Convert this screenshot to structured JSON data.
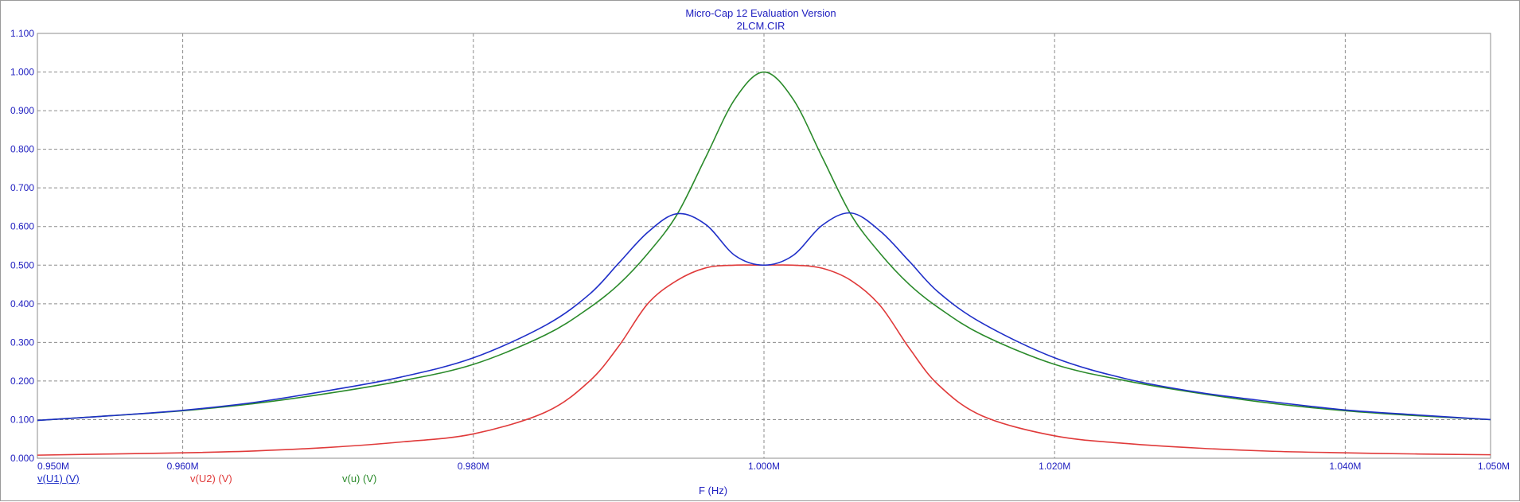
{
  "header": {
    "title": "Micro-Cap 12 Evaluation Version",
    "subtitle": "2LCM.CIR"
  },
  "colors": {
    "grid": "#8c8c8c",
    "axis_text": "#2020c0",
    "frame": "#9a9a9a"
  },
  "chart_data": {
    "type": "line",
    "title": "Micro-Cap 12 Evaluation Version",
    "subtitle": "2LCM.CIR",
    "xlabel": "F (Hz)",
    "ylabel": "",
    "xlim": [
      0.95,
      1.05
    ],
    "ylim": [
      0,
      1.1
    ],
    "x_unit": "MHz",
    "xticks": [
      0.95,
      0.96,
      0.98,
      1.0,
      1.02,
      1.04,
      1.05
    ],
    "xtick_labels": [
      "0.950M",
      "0.960M",
      "0.980M",
      "1.000M",
      "1.020M",
      "1.040M",
      "1.050M"
    ],
    "yticks": [
      0,
      0.1,
      0.2,
      0.3,
      0.4,
      0.5,
      0.6,
      0.7,
      0.8,
      0.9,
      1.0,
      1.1
    ],
    "ytick_labels": [
      "0.000",
      "0.100",
      "0.200",
      "0.300",
      "0.400",
      "0.500",
      "0.600",
      "0.700",
      "0.800",
      "0.900",
      "1.000",
      "1.100"
    ],
    "grid": true,
    "legend_position": "bottom-left",
    "series": [
      {
        "name": "v(U1) (V)",
        "color": "#1f2fc8",
        "x": [
          0.95,
          0.955,
          0.96,
          0.965,
          0.97,
          0.975,
          0.98,
          0.985,
          0.988,
          0.99,
          0.992,
          0.994,
          0.996,
          0.998,
          1.0,
          1.002,
          1.004,
          1.006,
          1.008,
          1.01,
          1.012,
          1.015,
          1.02,
          1.025,
          1.03,
          1.035,
          1.04,
          1.045,
          1.05
        ],
        "values": [
          0.098,
          0.11,
          0.124,
          0.145,
          0.175,
          0.21,
          0.26,
          0.345,
          0.425,
          0.505,
          0.585,
          0.633,
          0.605,
          0.525,
          0.5,
          0.525,
          0.603,
          0.635,
          0.588,
          0.51,
          0.43,
          0.35,
          0.26,
          0.205,
          0.17,
          0.146,
          0.125,
          0.112,
          0.1
        ]
      },
      {
        "name": "v(U2) (V)",
        "color": "#e03a3a",
        "x": [
          0.95,
          0.955,
          0.96,
          0.965,
          0.97,
          0.975,
          0.98,
          0.985,
          0.988,
          0.99,
          0.992,
          0.994,
          0.996,
          0.998,
          1.0,
          1.002,
          1.004,
          1.006,
          1.008,
          1.01,
          1.012,
          1.015,
          1.02,
          1.025,
          1.03,
          1.035,
          1.04,
          1.045,
          1.05
        ],
        "values": [
          0.008,
          0.011,
          0.014,
          0.019,
          0.028,
          0.042,
          0.063,
          0.12,
          0.2,
          0.29,
          0.4,
          0.46,
          0.493,
          0.5,
          0.5,
          0.5,
          0.492,
          0.46,
          0.395,
          0.285,
          0.19,
          0.11,
          0.058,
          0.038,
          0.026,
          0.018,
          0.014,
          0.011,
          0.009
        ]
      },
      {
        "name": "v(u) (V)",
        "color": "#2a8a2a",
        "x": [
          0.95,
          0.955,
          0.96,
          0.965,
          0.97,
          0.975,
          0.98,
          0.985,
          0.988,
          0.99,
          0.992,
          0.994,
          0.996,
          0.998,
          1.0,
          1.002,
          1.004,
          1.006,
          1.008,
          1.01,
          1.012,
          1.015,
          1.02,
          1.025,
          1.03,
          1.035,
          1.04,
          1.045,
          1.05
        ],
        "values": [
          0.098,
          0.11,
          0.123,
          0.142,
          0.168,
          0.2,
          0.243,
          0.32,
          0.39,
          0.45,
          0.53,
          0.63,
          0.78,
          0.93,
          1.0,
          0.93,
          0.78,
          0.63,
          0.53,
          0.45,
          0.39,
          0.32,
          0.243,
          0.2,
          0.168,
          0.142,
          0.123,
          0.11,
          0.1
        ]
      }
    ]
  }
}
